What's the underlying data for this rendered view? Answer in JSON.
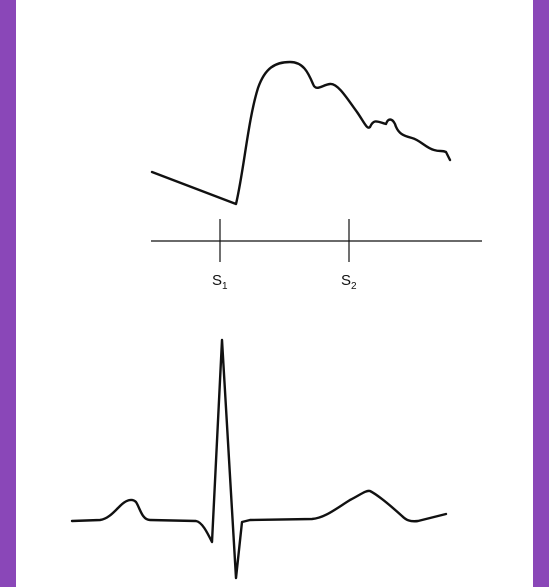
{
  "colors": {
    "border": "#8a47b8",
    "panel": "#ffffff",
    "trace": "#111111"
  },
  "markers": {
    "s1": {
      "letter": "S",
      "sub": "1"
    },
    "s2": {
      "letter": "S",
      "sub": "2"
    }
  }
}
